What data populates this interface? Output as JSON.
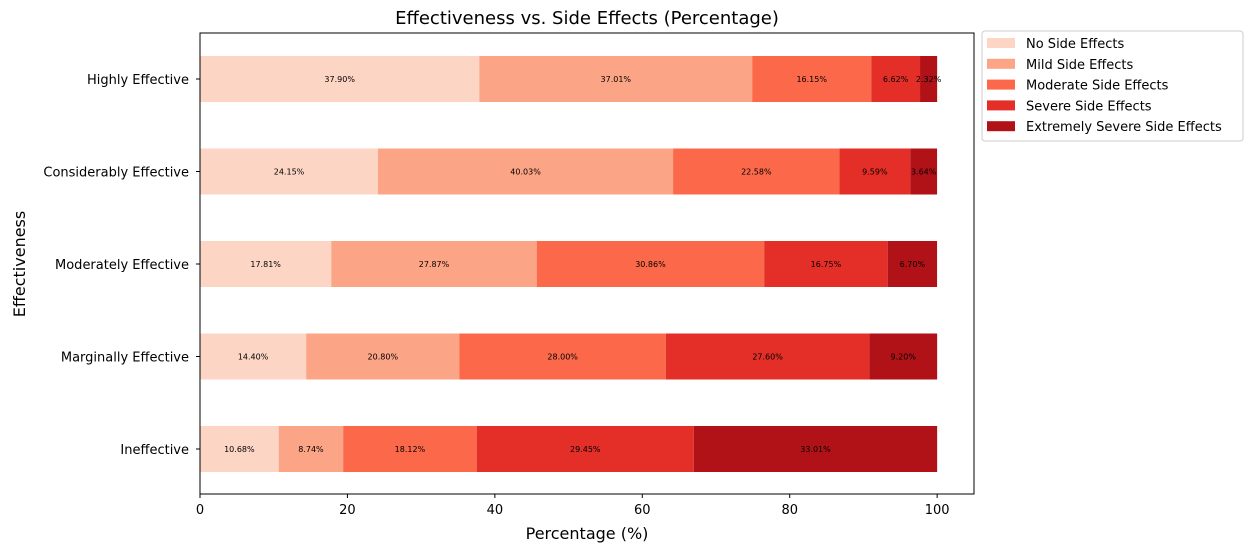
{
  "chart_data": {
    "type": "bar",
    "orientation": "horizontal",
    "stacked": true,
    "title": "Effectiveness vs. Side Effects (Percentage)",
    "xlabel": "Percentage (%)",
    "ylabel": "Effectiveness",
    "xlim": [
      0,
      105
    ],
    "xticks": [
      "0",
      "20",
      "40",
      "60",
      "80",
      "100"
    ],
    "legend_position": "outside top-right",
    "categories": [
      "Highly Effective",
      "Considerably Effective",
      "Moderately Effective",
      "Marginally Effective",
      "Ineffective"
    ],
    "series": [
      {
        "name": "No Side Effects",
        "color": "#fdd5c4",
        "values": [
          37.9,
          24.15,
          17.81,
          14.4,
          10.68
        ],
        "labels": [
          "37.90%",
          "24.15%",
          "17.81%",
          "14.40%",
          "10.68%"
        ]
      },
      {
        "name": "Mild Side Effects",
        "color": "#fca486",
        "values": [
          37.01,
          40.03,
          27.87,
          20.8,
          8.74
        ],
        "labels": [
          "37.01%",
          "40.03%",
          "27.87%",
          "20.80%",
          "8.74%"
        ]
      },
      {
        "name": "Moderate Side Effects",
        "color": "#fb694a",
        "values": [
          16.15,
          22.58,
          30.86,
          28.0,
          18.12
        ],
        "labels": [
          "16.15%",
          "22.58%",
          "30.86%",
          "28.00%",
          "18.12%"
        ]
      },
      {
        "name": "Severe Side Effects",
        "color": "#e32f27",
        "values": [
          6.62,
          9.59,
          16.75,
          27.6,
          29.45
        ],
        "labels": [
          "6.62%",
          "9.59%",
          "16.75%",
          "27.60%",
          "29.45%"
        ]
      },
      {
        "name": "Extremely Severe Side Effects",
        "color": "#b11218",
        "values": [
          2.32,
          3.64,
          6.7,
          9.2,
          33.01
        ],
        "labels": [
          "2.32%",
          "3.64%",
          "6.70%",
          "9.20%",
          "33.01%"
        ]
      }
    ]
  }
}
